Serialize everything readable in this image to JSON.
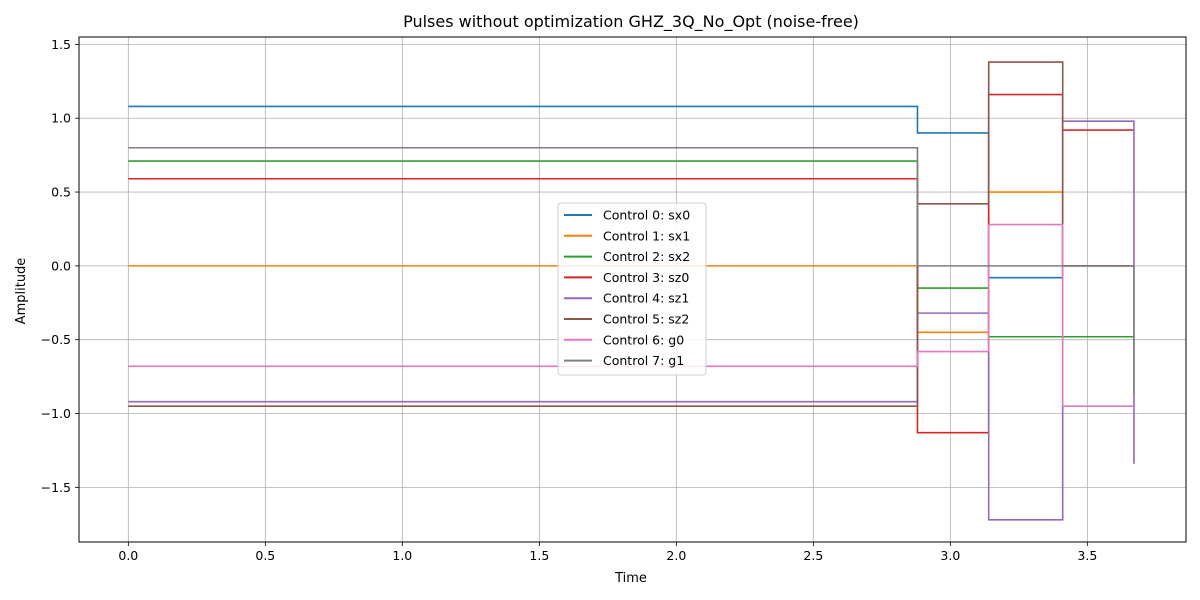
{
  "chart_data": {
    "type": "line",
    "step": "post",
    "title": "Pulses without optimization GHZ_3Q_No_Opt (noise-free)",
    "xlabel": "Time",
    "ylabel": "Amplitude",
    "xlim": [
      -0.18,
      3.86
    ],
    "ylim": [
      -1.87,
      1.55
    ],
    "xticks": [
      0.0,
      0.5,
      1.0,
      1.5,
      2.0,
      2.5,
      3.0,
      3.5
    ],
    "xtick_labels": [
      "0.0",
      "0.5",
      "1.0",
      "1.5",
      "2.0",
      "2.5",
      "3.0",
      "3.5"
    ],
    "yticks": [
      -1.5,
      -1.0,
      -0.5,
      0.0,
      0.5,
      1.0,
      1.5
    ],
    "ytick_labels": [
      "−1.5",
      "−1.0",
      "−0.5",
      "0.0",
      "0.5",
      "1.0",
      "1.5"
    ],
    "grid": true,
    "legend_position": "center",
    "x": [
      0.0,
      2.88,
      3.14,
      3.41,
      3.67
    ],
    "series": [
      {
        "name": "Control 0: sx0",
        "color": "#1f77b4",
        "values": [
          1.08,
          0.9,
          -0.08,
          0.0,
          0.0
        ]
      },
      {
        "name": "Control 1: sx1",
        "color": "#ff7f0e",
        "values": [
          0.0,
          -0.45,
          0.5,
          0.0,
          0.0
        ]
      },
      {
        "name": "Control 2: sx2",
        "color": "#2ca02c",
        "values": [
          0.71,
          -0.15,
          -0.48,
          -0.48,
          -0.48
        ]
      },
      {
        "name": "Control 3: sz0",
        "color": "#d62728",
        "values": [
          0.59,
          -1.13,
          1.16,
          0.92,
          0.92
        ]
      },
      {
        "name": "Control 4: sz1",
        "color": "#9467bd",
        "values": [
          -0.92,
          -0.32,
          -1.72,
          0.98,
          -1.34
        ]
      },
      {
        "name": "Control 5: sz2",
        "color": "#8c564b",
        "values": [
          -0.95,
          0.42,
          1.38,
          0.0,
          0.0
        ]
      },
      {
        "name": "Control 6: g0",
        "color": "#e377c2",
        "values": [
          -0.68,
          -0.58,
          0.28,
          -0.95,
          -0.95
        ]
      },
      {
        "name": "Control 7: g1",
        "color": "#7f7f7f",
        "values": [
          0.8,
          0.0,
          0.0,
          0.0,
          -0.87
        ]
      }
    ]
  }
}
